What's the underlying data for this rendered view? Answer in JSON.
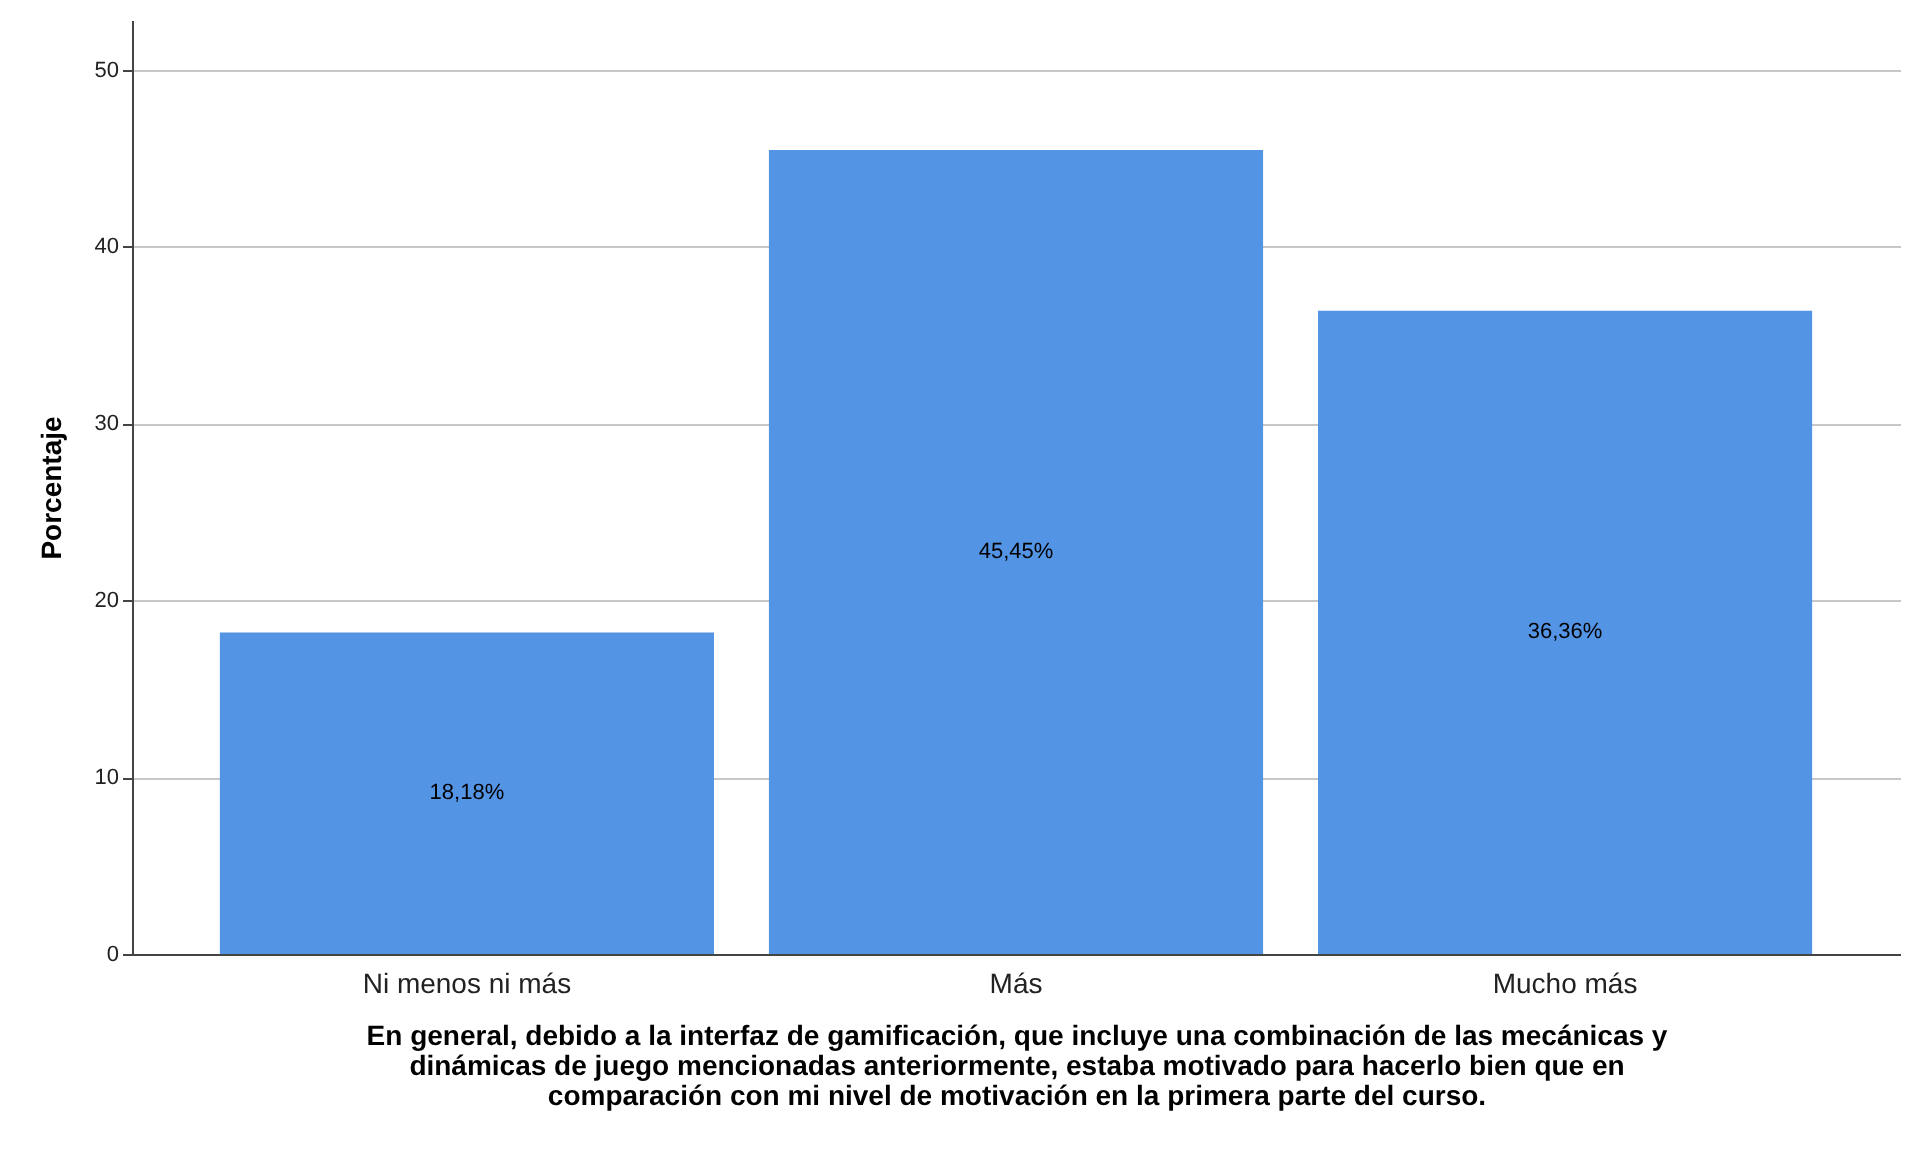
{
  "chart_data": {
    "type": "bar",
    "xlabel": "En general, debido a la interfaz de gamificación, que incluye una combinación de las mecánicas y\ndinámicas de juego mencionadas anteriormente, estaba motivado para hacerlo bien que en\ncomparación con mi nivel de motivación en la primera parte del curso.",
    "ylabel": "Porcentaje",
    "categories": [
      "Ni menos ni más",
      "Más",
      "Mucho más"
    ],
    "values": [
      18.18,
      45.45,
      36.36
    ],
    "value_labels": [
      "18,18%",
      "45,45%",
      "36,36%"
    ],
    "color": "#5494e4",
    "ylim": [
      0,
      52.8
    ],
    "yticks": [
      0,
      10,
      20,
      30,
      40,
      50
    ],
    "grid": "y"
  }
}
